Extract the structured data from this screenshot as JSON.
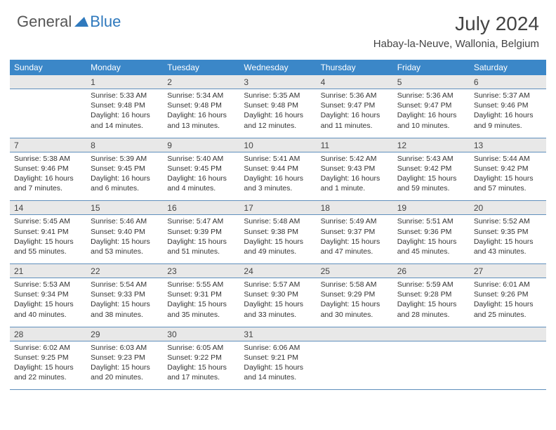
{
  "logo": {
    "text1": "General",
    "text2": "Blue"
  },
  "title": "July 2024",
  "location": "Habay-la-Neuve, Wallonia, Belgium",
  "colors": {
    "header_bar": "#3b87c8",
    "daynum_bg": "#e8e8e8",
    "week_divider": "#5f8fbc",
    "logo_blue": "#2f79bd",
    "text": "#333333"
  },
  "typography": {
    "title_fontsize": 28,
    "location_fontsize": 15,
    "dow_fontsize": 12,
    "daynum_fontsize": 12,
    "cell_fontsize": 10.5
  },
  "days_of_week": [
    "Sunday",
    "Monday",
    "Tuesday",
    "Wednesday",
    "Thursday",
    "Friday",
    "Saturday"
  ],
  "weeks": [
    {
      "nums": [
        "",
        "1",
        "2",
        "3",
        "4",
        "5",
        "6"
      ],
      "cells": [
        {
          "sunrise": "",
          "sunset": "",
          "daylight": ""
        },
        {
          "sunrise": "Sunrise: 5:33 AM",
          "sunset": "Sunset: 9:48 PM",
          "daylight": "Daylight: 16 hours and 14 minutes."
        },
        {
          "sunrise": "Sunrise: 5:34 AM",
          "sunset": "Sunset: 9:48 PM",
          "daylight": "Daylight: 16 hours and 13 minutes."
        },
        {
          "sunrise": "Sunrise: 5:35 AM",
          "sunset": "Sunset: 9:48 PM",
          "daylight": "Daylight: 16 hours and 12 minutes."
        },
        {
          "sunrise": "Sunrise: 5:36 AM",
          "sunset": "Sunset: 9:47 PM",
          "daylight": "Daylight: 16 hours and 11 minutes."
        },
        {
          "sunrise": "Sunrise: 5:36 AM",
          "sunset": "Sunset: 9:47 PM",
          "daylight": "Daylight: 16 hours and 10 minutes."
        },
        {
          "sunrise": "Sunrise: 5:37 AM",
          "sunset": "Sunset: 9:46 PM",
          "daylight": "Daylight: 16 hours and 9 minutes."
        }
      ]
    },
    {
      "nums": [
        "7",
        "8",
        "9",
        "10",
        "11",
        "12",
        "13"
      ],
      "cells": [
        {
          "sunrise": "Sunrise: 5:38 AM",
          "sunset": "Sunset: 9:46 PM",
          "daylight": "Daylight: 16 hours and 7 minutes."
        },
        {
          "sunrise": "Sunrise: 5:39 AM",
          "sunset": "Sunset: 9:45 PM",
          "daylight": "Daylight: 16 hours and 6 minutes."
        },
        {
          "sunrise": "Sunrise: 5:40 AM",
          "sunset": "Sunset: 9:45 PM",
          "daylight": "Daylight: 16 hours and 4 minutes."
        },
        {
          "sunrise": "Sunrise: 5:41 AM",
          "sunset": "Sunset: 9:44 PM",
          "daylight": "Daylight: 16 hours and 3 minutes."
        },
        {
          "sunrise": "Sunrise: 5:42 AM",
          "sunset": "Sunset: 9:43 PM",
          "daylight": "Daylight: 16 hours and 1 minute."
        },
        {
          "sunrise": "Sunrise: 5:43 AM",
          "sunset": "Sunset: 9:42 PM",
          "daylight": "Daylight: 15 hours and 59 minutes."
        },
        {
          "sunrise": "Sunrise: 5:44 AM",
          "sunset": "Sunset: 9:42 PM",
          "daylight": "Daylight: 15 hours and 57 minutes."
        }
      ]
    },
    {
      "nums": [
        "14",
        "15",
        "16",
        "17",
        "18",
        "19",
        "20"
      ],
      "cells": [
        {
          "sunrise": "Sunrise: 5:45 AM",
          "sunset": "Sunset: 9:41 PM",
          "daylight": "Daylight: 15 hours and 55 minutes."
        },
        {
          "sunrise": "Sunrise: 5:46 AM",
          "sunset": "Sunset: 9:40 PM",
          "daylight": "Daylight: 15 hours and 53 minutes."
        },
        {
          "sunrise": "Sunrise: 5:47 AM",
          "sunset": "Sunset: 9:39 PM",
          "daylight": "Daylight: 15 hours and 51 minutes."
        },
        {
          "sunrise": "Sunrise: 5:48 AM",
          "sunset": "Sunset: 9:38 PM",
          "daylight": "Daylight: 15 hours and 49 minutes."
        },
        {
          "sunrise": "Sunrise: 5:49 AM",
          "sunset": "Sunset: 9:37 PM",
          "daylight": "Daylight: 15 hours and 47 minutes."
        },
        {
          "sunrise": "Sunrise: 5:51 AM",
          "sunset": "Sunset: 9:36 PM",
          "daylight": "Daylight: 15 hours and 45 minutes."
        },
        {
          "sunrise": "Sunrise: 5:52 AM",
          "sunset": "Sunset: 9:35 PM",
          "daylight": "Daylight: 15 hours and 43 minutes."
        }
      ]
    },
    {
      "nums": [
        "21",
        "22",
        "23",
        "24",
        "25",
        "26",
        "27"
      ],
      "cells": [
        {
          "sunrise": "Sunrise: 5:53 AM",
          "sunset": "Sunset: 9:34 PM",
          "daylight": "Daylight: 15 hours and 40 minutes."
        },
        {
          "sunrise": "Sunrise: 5:54 AM",
          "sunset": "Sunset: 9:33 PM",
          "daylight": "Daylight: 15 hours and 38 minutes."
        },
        {
          "sunrise": "Sunrise: 5:55 AM",
          "sunset": "Sunset: 9:31 PM",
          "daylight": "Daylight: 15 hours and 35 minutes."
        },
        {
          "sunrise": "Sunrise: 5:57 AM",
          "sunset": "Sunset: 9:30 PM",
          "daylight": "Daylight: 15 hours and 33 minutes."
        },
        {
          "sunrise": "Sunrise: 5:58 AM",
          "sunset": "Sunset: 9:29 PM",
          "daylight": "Daylight: 15 hours and 30 minutes."
        },
        {
          "sunrise": "Sunrise: 5:59 AM",
          "sunset": "Sunset: 9:28 PM",
          "daylight": "Daylight: 15 hours and 28 minutes."
        },
        {
          "sunrise": "Sunrise: 6:01 AM",
          "sunset": "Sunset: 9:26 PM",
          "daylight": "Daylight: 15 hours and 25 minutes."
        }
      ]
    },
    {
      "nums": [
        "28",
        "29",
        "30",
        "31",
        "",
        "",
        ""
      ],
      "cells": [
        {
          "sunrise": "Sunrise: 6:02 AM",
          "sunset": "Sunset: 9:25 PM",
          "daylight": "Daylight: 15 hours and 22 minutes."
        },
        {
          "sunrise": "Sunrise: 6:03 AM",
          "sunset": "Sunset: 9:23 PM",
          "daylight": "Daylight: 15 hours and 20 minutes."
        },
        {
          "sunrise": "Sunrise: 6:05 AM",
          "sunset": "Sunset: 9:22 PM",
          "daylight": "Daylight: 15 hours and 17 minutes."
        },
        {
          "sunrise": "Sunrise: 6:06 AM",
          "sunset": "Sunset: 9:21 PM",
          "daylight": "Daylight: 15 hours and 14 minutes."
        },
        {
          "sunrise": "",
          "sunset": "",
          "daylight": ""
        },
        {
          "sunrise": "",
          "sunset": "",
          "daylight": ""
        },
        {
          "sunrise": "",
          "sunset": "",
          "daylight": ""
        }
      ]
    }
  ]
}
